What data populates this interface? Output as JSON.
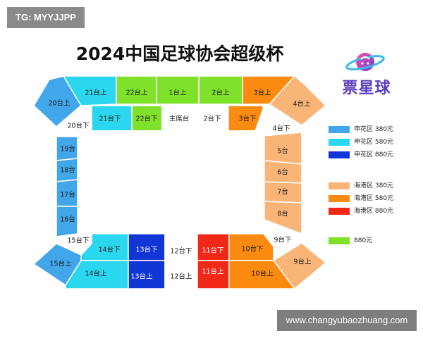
{
  "watermark": "TG: MYYJJPP",
  "title": "2024中国足球协会超级杯",
  "logo": {
    "text": "票星球",
    "icon": "planet-icon"
  },
  "footer": "www.changyubaozhuang.com",
  "colors": {
    "blue": "#42a6ea",
    "cyan": "#2bd7ef",
    "navy": "#1235d6",
    "peach": "#f9b577",
    "orange": "#fa8a10",
    "red": "#f12818",
    "green": "#7fe12a",
    "white": "#ffffff"
  },
  "legend": [
    {
      "label": "申花区 380元",
      "color": "blue"
    },
    {
      "label": "申花区 580元",
      "color": "cyan"
    },
    {
      "label": "申花区 880元",
      "color": "navy"
    },
    {
      "label": "海港区 380元",
      "color": "peach"
    },
    {
      "label": "海港区 580元",
      "color": "orange"
    },
    {
      "label": "海港区 880元",
      "color": "red"
    },
    {
      "label": "880元",
      "color": "green"
    }
  ],
  "sections": {
    "s20u": {
      "label": "20台上",
      "color": "blue"
    },
    "s21u": {
      "label": "21台上",
      "color": "cyan"
    },
    "s22u": {
      "label": "22台上",
      "color": "green"
    },
    "s1u": {
      "label": "1台上",
      "color": "green"
    },
    "s2u": {
      "label": "2台上",
      "color": "green"
    },
    "s3u": {
      "label": "3台上",
      "color": "orange"
    },
    "s4u": {
      "label": "4台上",
      "color": "peach"
    },
    "s20d": {
      "label": "20台下",
      "color": "white"
    },
    "s21d": {
      "label": "21台下",
      "color": "cyan"
    },
    "s22d": {
      "label": "22台下",
      "color": "green"
    },
    "main": {
      "label": "主席台",
      "color": "white"
    },
    "s2d": {
      "label": "2台下",
      "color": "white"
    },
    "s3d": {
      "label": "3台下",
      "color": "orange"
    },
    "s4d": {
      "label": "4台下",
      "color": "white"
    },
    "s19": {
      "label": "19台",
      "color": "blue"
    },
    "s18": {
      "label": "18台",
      "color": "blue"
    },
    "s17": {
      "label": "17台",
      "color": "blue"
    },
    "s16": {
      "label": "16台",
      "color": "blue"
    },
    "s5": {
      "label": "5台",
      "color": "peach"
    },
    "s6": {
      "label": "6台",
      "color": "peach"
    },
    "s7": {
      "label": "7台",
      "color": "peach"
    },
    "s8": {
      "label": "8台",
      "color": "peach"
    },
    "s15d": {
      "label": "15台下",
      "color": "white"
    },
    "s14d": {
      "label": "14台下",
      "color": "cyan"
    },
    "s13d": {
      "label": "13台下",
      "color": "navy"
    },
    "s12d": {
      "label": "12台下",
      "color": "white"
    },
    "s11d": {
      "label": "11台下",
      "color": "red"
    },
    "s10d": {
      "label": "10台下",
      "color": "orange"
    },
    "s9d": {
      "label": "9台下",
      "color": "white"
    },
    "s15u": {
      "label": "15台上",
      "color": "blue"
    },
    "s14u": {
      "label": "14台上",
      "color": "cyan"
    },
    "s13u": {
      "label": "13台上",
      "color": "navy"
    },
    "s12u": {
      "label": "12台上",
      "color": "white"
    },
    "s11u": {
      "label": "11台上",
      "color": "red"
    },
    "s10u": {
      "label": "10台上",
      "color": "orange"
    },
    "s9u": {
      "label": "9台上",
      "color": "peach"
    }
  }
}
